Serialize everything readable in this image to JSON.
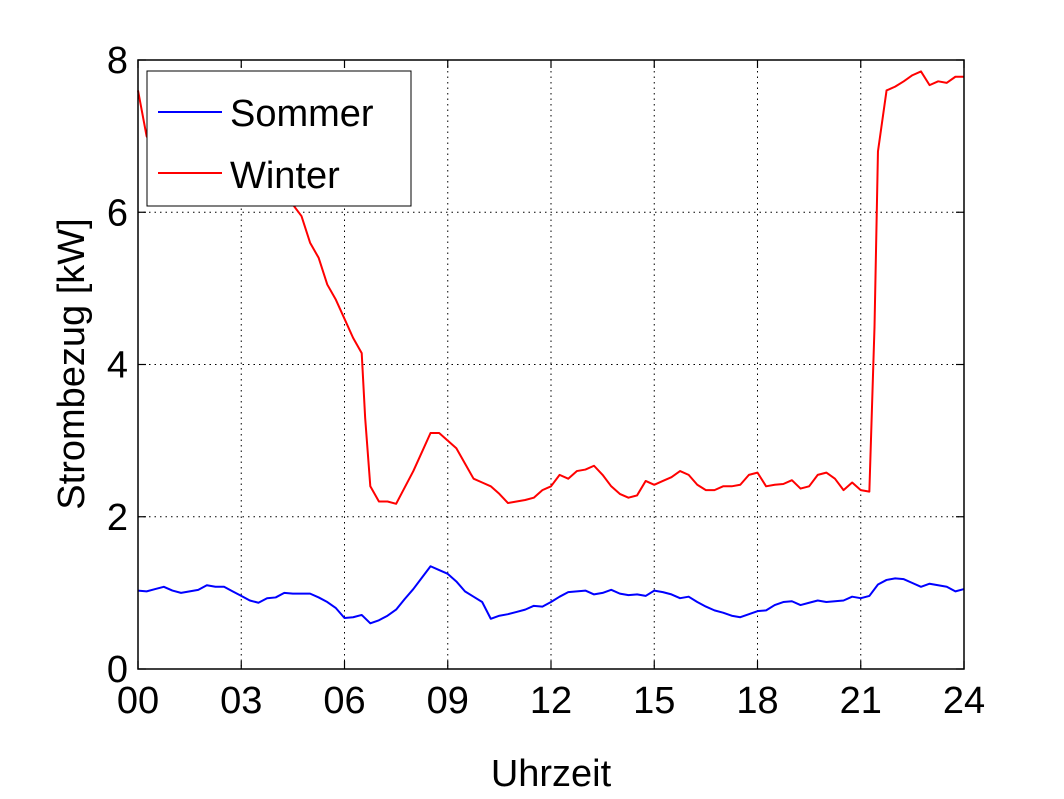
{
  "chart_data": {
    "type": "line",
    "title": "",
    "xlabel": "Uhrzeit",
    "ylabel": "Strombezug [kW]",
    "xlim": [
      0,
      24
    ],
    "ylim": [
      0,
      8
    ],
    "x_ticks": [
      0,
      3,
      6,
      9,
      12,
      15,
      18,
      21,
      24
    ],
    "x_tick_labels": [
      "00",
      "03",
      "06",
      "09",
      "12",
      "15",
      "18",
      "21",
      "24"
    ],
    "y_ticks": [
      0,
      2,
      4,
      6,
      8
    ],
    "y_tick_labels": [
      "0",
      "2",
      "4",
      "6",
      "8"
    ],
    "grid": true,
    "legend_position": "top-left",
    "series": [
      {
        "name": "Sommer",
        "color": "#0000ff",
        "x": [
          0,
          0.25,
          0.5,
          0.75,
          1.0,
          1.25,
          1.5,
          1.75,
          2.0,
          2.25,
          2.5,
          2.75,
          3.0,
          3.25,
          3.5,
          3.75,
          4.0,
          4.25,
          4.5,
          4.75,
          5.0,
          5.25,
          5.5,
          5.75,
          6.0,
          6.25,
          6.5,
          6.75,
          7.0,
          7.25,
          7.5,
          7.75,
          8.0,
          8.25,
          8.5,
          8.75,
          9.0,
          9.25,
          9.5,
          9.75,
          10.0,
          10.25,
          10.5,
          10.75,
          11.0,
          11.25,
          11.5,
          11.75,
          12.0,
          12.25,
          12.5,
          12.75,
          13.0,
          13.25,
          13.5,
          13.75,
          14.0,
          14.25,
          14.5,
          14.75,
          15.0,
          15.25,
          15.5,
          15.75,
          16.0,
          16.25,
          16.5,
          16.75,
          17.0,
          17.25,
          17.5,
          17.75,
          18.0,
          18.25,
          18.5,
          18.75,
          19.0,
          19.25,
          19.5,
          19.75,
          20.0,
          20.25,
          20.5,
          20.75,
          21.0,
          21.25,
          21.5,
          21.75,
          22.0,
          22.25,
          22.5,
          22.75,
          23.0,
          23.25,
          23.5,
          23.75,
          24.0
        ],
        "values": [
          1.03,
          1.02,
          1.05,
          1.08,
          1.03,
          1.0,
          1.02,
          1.04,
          1.1,
          1.08,
          1.08,
          1.02,
          0.96,
          0.9,
          0.87,
          0.93,
          0.94,
          1.0,
          0.99,
          0.99,
          0.99,
          0.94,
          0.88,
          0.8,
          0.67,
          0.68,
          0.71,
          0.6,
          0.64,
          0.7,
          0.78,
          0.92,
          1.05,
          1.2,
          1.35,
          1.3,
          1.25,
          1.15,
          1.02,
          0.95,
          0.88,
          0.66,
          0.7,
          0.72,
          0.75,
          0.78,
          0.83,
          0.82,
          0.88,
          0.95,
          1.01,
          1.02,
          1.03,
          0.98,
          1.0,
          1.04,
          0.99,
          0.97,
          0.98,
          0.96,
          1.03,
          1.01,
          0.98,
          0.93,
          0.95,
          0.88,
          0.82,
          0.77,
          0.74,
          0.7,
          0.68,
          0.72,
          0.76,
          0.77,
          0.84,
          0.88,
          0.89,
          0.84,
          0.87,
          0.9,
          0.88,
          0.89,
          0.9,
          0.95,
          0.93,
          0.96,
          1.11,
          1.17,
          1.19,
          1.18,
          1.13,
          1.08,
          1.12,
          1.1,
          1.08,
          1.02,
          1.05
        ]
      },
      {
        "name": "Winter",
        "color": "#ff0000",
        "x": [
          0,
          0.25,
          0.5,
          1.0,
          2.0,
          3.0,
          3.5,
          4.0,
          4.5,
          4.75,
          5.0,
          5.25,
          5.5,
          5.75,
          6.0,
          6.25,
          6.5,
          6.6,
          6.75,
          7.0,
          7.25,
          7.5,
          8.0,
          8.25,
          8.5,
          8.75,
          9.0,
          9.25,
          9.5,
          9.75,
          10.0,
          10.25,
          10.5,
          10.75,
          11.0,
          11.25,
          11.5,
          11.75,
          12.0,
          12.25,
          12.5,
          12.75,
          13.0,
          13.25,
          13.5,
          13.75,
          14.0,
          14.25,
          14.5,
          14.75,
          15.0,
          15.25,
          15.5,
          15.75,
          16.0,
          16.25,
          16.5,
          16.75,
          17.0,
          17.25,
          17.5,
          17.75,
          18.0,
          18.25,
          18.5,
          18.75,
          19.0,
          19.25,
          19.5,
          19.75,
          20.0,
          20.25,
          20.5,
          20.75,
          21.0,
          21.25,
          21.4,
          21.5,
          21.75,
          22.0,
          22.25,
          22.5,
          22.75,
          23.0,
          23.25,
          23.5,
          23.75,
          24.0
        ],
        "values": [
          7.6,
          7.0,
          6.8,
          6.6,
          6.4,
          6.2,
          6.2,
          6.15,
          6.1,
          5.95,
          5.6,
          5.4,
          5.05,
          4.85,
          4.6,
          4.35,
          4.15,
          3.3,
          2.4,
          2.2,
          2.2,
          2.17,
          2.6,
          2.85,
          3.1,
          3.1,
          3.0,
          2.9,
          2.7,
          2.5,
          2.45,
          2.4,
          2.3,
          2.18,
          2.2,
          2.22,
          2.25,
          2.35,
          2.4,
          2.55,
          2.5,
          2.6,
          2.62,
          2.67,
          2.55,
          2.4,
          2.3,
          2.25,
          2.28,
          2.47,
          2.42,
          2.47,
          2.52,
          2.6,
          2.55,
          2.42,
          2.35,
          2.35,
          2.4,
          2.4,
          2.42,
          2.55,
          2.58,
          2.4,
          2.42,
          2.43,
          2.48,
          2.37,
          2.4,
          2.55,
          2.58,
          2.5,
          2.35,
          2.45,
          2.35,
          2.33,
          4.5,
          6.8,
          7.6,
          7.65,
          7.72,
          7.8,
          7.85,
          7.67,
          7.72,
          7.7,
          7.78,
          7.78
        ]
      }
    ]
  }
}
